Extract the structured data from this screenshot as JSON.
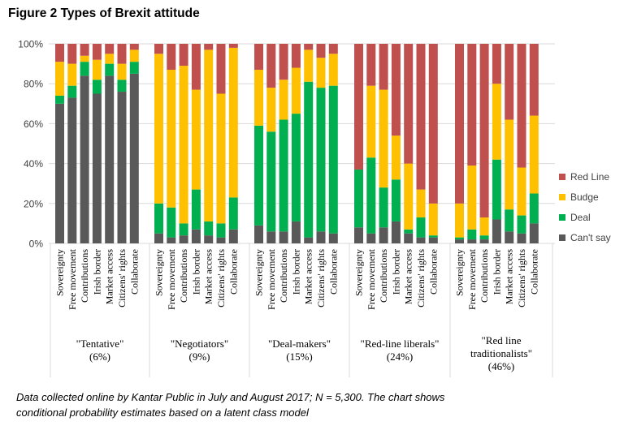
{
  "title": "Figure 2 Types of Brexit attitude",
  "note": {
    "line1": "Data collected online by Kantar Public in July and August 2017; N = 5,300. The chart shows",
    "line2": "conditional probability estimates based on a latent class model"
  },
  "chart_data": {
    "type": "bar",
    "stacked": true,
    "ylim": [
      0,
      100
    ],
    "yticks": [
      "0%",
      "20%",
      "40%",
      "60%",
      "80%",
      "100%"
    ],
    "grid": true,
    "legend_position": "right",
    "categories": [
      "Sovereignty",
      "Free movement",
      "Contributions",
      "Irish border",
      "Market access",
      "Citizens' rights",
      "Collaborate"
    ],
    "groups": [
      {
        "label": "\"Tentative\"",
        "share": "(6%)"
      },
      {
        "label": "\"Negotiators\"",
        "share": "(9%)"
      },
      {
        "label": "\"Deal-makers\"",
        "share": "(15%)"
      },
      {
        "label": "\"Red-line liberals\"",
        "share": "(24%)"
      },
      {
        "label": "\"Red line",
        "label2": "traditionalists\"",
        "share": "(46%)"
      }
    ],
    "series": [
      {
        "name": "Can't say",
        "color": "#595959",
        "values": [
          [
            70,
            73,
            84,
            75,
            84,
            76,
            85
          ],
          [
            5,
            3,
            4,
            7,
            4,
            3,
            7
          ],
          [
            9,
            6,
            6,
            11,
            3,
            6,
            5
          ],
          [
            8,
            5,
            8,
            11,
            5,
            3,
            3
          ],
          [
            2,
            2,
            2,
            12,
            6,
            5,
            10
          ]
        ]
      },
      {
        "name": "Deal",
        "color": "#00b050",
        "values": [
          [
            4,
            6,
            7,
            7,
            6,
            6,
            6
          ],
          [
            15,
            15,
            6,
            20,
            7,
            7,
            16
          ],
          [
            50,
            50,
            56,
            54,
            78,
            72,
            74
          ],
          [
            29,
            38,
            20,
            21,
            2,
            10,
            1
          ],
          [
            1,
            5,
            2,
            30,
            11,
            9,
            15
          ]
        ]
      },
      {
        "name": "Budge",
        "color": "#ffc000",
        "values": [
          [
            17,
            11,
            3,
            10,
            5,
            8,
            6
          ],
          [
            75,
            69,
            79,
            50,
            86,
            65,
            75
          ],
          [
            28,
            22,
            20,
            23,
            16,
            15,
            16
          ],
          [
            0,
            36,
            49,
            22,
            33,
            14,
            16
          ],
          [
            17,
            32,
            9,
            38,
            45,
            24,
            39
          ]
        ]
      },
      {
        "name": "Red Line",
        "color": "#c0504d",
        "values": [
          [
            9,
            10,
            6,
            8,
            5,
            10,
            3
          ],
          [
            5,
            13,
            11,
            23,
            3,
            25,
            2
          ],
          [
            13,
            22,
            18,
            12,
            3,
            7,
            5
          ],
          [
            63,
            21,
            23,
            46,
            60,
            73,
            80
          ],
          [
            80,
            61,
            87,
            20,
            38,
            62,
            36
          ]
        ]
      }
    ]
  }
}
